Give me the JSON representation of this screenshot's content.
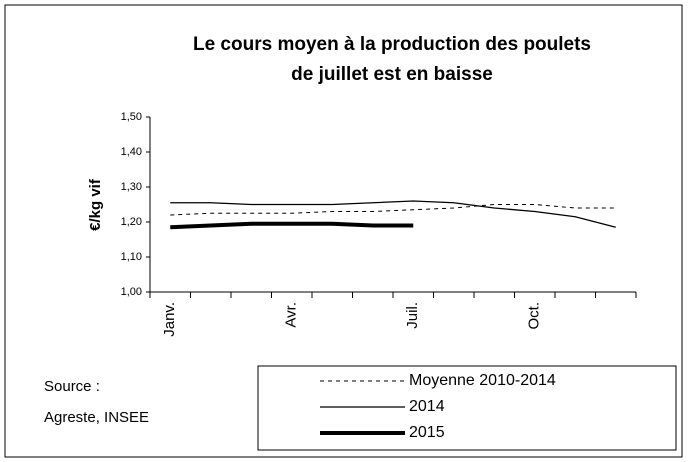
{
  "chart_data": {
    "type": "line",
    "title": [
      "Le cours moyen à la production des poulets",
      "de juillet est en baisse"
    ],
    "y_label": "€/kg vif",
    "annotation": [
      "Source :",
      "Agreste, INSEE"
    ],
    "categories": [
      "Janv.",
      null,
      null,
      "Avr.",
      null,
      null,
      "Juil.",
      null,
      null,
      "Oct.",
      null,
      null
    ],
    "series": [
      {
        "name": "Moyenne 2010-2014",
        "color": "#000000",
        "style": "dashed",
        "line_width": 1,
        "values": [
          1.22,
          1.225,
          1.225,
          1.225,
          1.23,
          1.23,
          1.235,
          1.24,
          1.25,
          1.25,
          1.24,
          1.24
        ]
      },
      {
        "name": "2014",
        "color": "#000000",
        "style": "solid",
        "line_width": 1.3,
        "values": [
          1.255,
          1.255,
          1.25,
          1.25,
          1.25,
          1.255,
          1.26,
          1.255,
          1.24,
          1.23,
          1.215,
          1.185
        ]
      },
      {
        "name": "2015",
        "color": "#000000",
        "style": "solid",
        "line_width": 4,
        "values": [
          1.185,
          1.19,
          1.195,
          1.195,
          1.195,
          1.19,
          1.19,
          null,
          null,
          null,
          null,
          null
        ]
      }
    ],
    "ylim": [
      1.0,
      1.5
    ],
    "yticks": [
      {
        "value": 1.0,
        "label": "1,00"
      },
      {
        "value": 1.1,
        "label": "1,10"
      },
      {
        "value": 1.2,
        "label": "1,20"
      },
      {
        "value": 1.3,
        "label": "1,30"
      },
      {
        "value": 1.4,
        "label": "1,40"
      },
      {
        "value": 1.5,
        "label": "1,50"
      }
    ],
    "grid": false,
    "legend": "bottom-right"
  }
}
